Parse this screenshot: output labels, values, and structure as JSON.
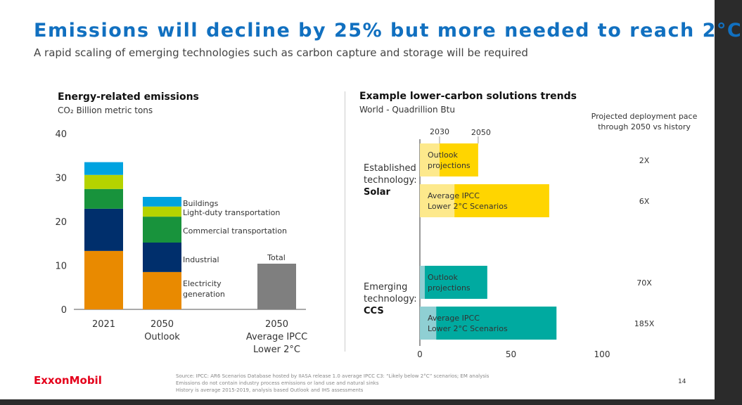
{
  "title": "Emissions will decline by 25% but more needed to reach 2°C",
  "subtitle": "A rapid scaling of emerging technologies such as carbon capture and storage will be required",
  "chart_data": [
    {
      "type": "bar",
      "stacked": true,
      "title": "Energy-related emissions",
      "ylabel": "CO₂ Billion metric tons",
      "ylim": [
        0,
        40
      ],
      "yticks": [
        "0",
        "10",
        "20",
        "30",
        "40"
      ],
      "categories": [
        "2021",
        "2050 Outlook",
        "2050 Average IPCC Lower 2°C"
      ],
      "category_lines": [
        [
          "2021"
        ],
        [
          "2050",
          "Outlook"
        ],
        [
          "2050",
          "Average IPCC",
          "Lower 2°C"
        ]
      ],
      "series": [
        {
          "name": "Electricity generation",
          "color": "#e98a00",
          "values": [
            13.3,
            8.5,
            null
          ]
        },
        {
          "name": "Industrial",
          "color": "#002f6c",
          "values": [
            9.6,
            6.7,
            null
          ]
        },
        {
          "name": "Commercial transportation",
          "color": "#18933c",
          "values": [
            4.5,
            5.9,
            null
          ]
        },
        {
          "name": "Light-duty transportation",
          "color": "#b5d300",
          "values": [
            3.2,
            2.3,
            null
          ]
        },
        {
          "name": "Buildings",
          "color": "#00a3e0",
          "values": [
            2.9,
            2.2,
            null
          ]
        },
        {
          "name": "Total",
          "color": "#7f7f7f",
          "values": [
            null,
            null,
            10.4
          ]
        }
      ],
      "legend_labels": [
        "Buildings",
        "Light-duty transportation",
        "Commercial transportation",
        "Industrial",
        "Electricity generation"
      ],
      "total_label": "Total"
    },
    {
      "type": "bar",
      "orientation": "horizontal",
      "title": "Example lower-carbon solutions trends",
      "subtitle": "World - Quadrillion Btu",
      "xlim": [
        0,
        100
      ],
      "xticks": [
        "0",
        "50",
        "100"
      ],
      "year_markers": [
        "2030",
        "2050"
      ],
      "pace_header": "Projected deployment pace through 2050 vs history",
      "groups": [
        {
          "label_lines": [
            "Established",
            "technology:"
          ],
          "label_bold": "Solar",
          "color": "#ffd500",
          "light": "#fde98c",
          "bars": [
            {
              "label_lines": [
                "Outlook",
                "projections"
              ],
              "value_2030": 10.8,
              "value_2050": 32,
              "pace": "2X"
            },
            {
              "label_lines": [
                "Average IPCC",
                "Lower 2°C Scenarios"
              ],
              "value_2030": 19,
              "value_2050": 71,
              "pace": "6X"
            }
          ]
        },
        {
          "label_lines": [
            "Emerging",
            "technology:"
          ],
          "label_bold": "CCS",
          "color": "#00aaa0",
          "light": "#8fcfd3",
          "bars": [
            {
              "label_lines": [
                "Outlook",
                "projections"
              ],
              "value_2030": 2.7,
              "value_2050": 37,
              "pace": "70X"
            },
            {
              "label_lines": [
                "Average IPCC",
                "Lower 2°C Scenarios"
              ],
              "value_2030": 9,
              "value_2050": 75,
              "pace": "185X"
            }
          ]
        }
      ]
    }
  ],
  "footer": {
    "logo": "ExxonMobil",
    "source": [
      "Source: IPCC: AR6 Scenarios Database hosted by IIASA release 1.0 average IPCC C3: “Likely below 2°C” scenarios; EM analysis",
      "Emissions do not contain industry process emissions or land use and natural sinks",
      "History is average 2015-2019, analysis based Outlook and IHS assessments"
    ],
    "page": "14"
  }
}
